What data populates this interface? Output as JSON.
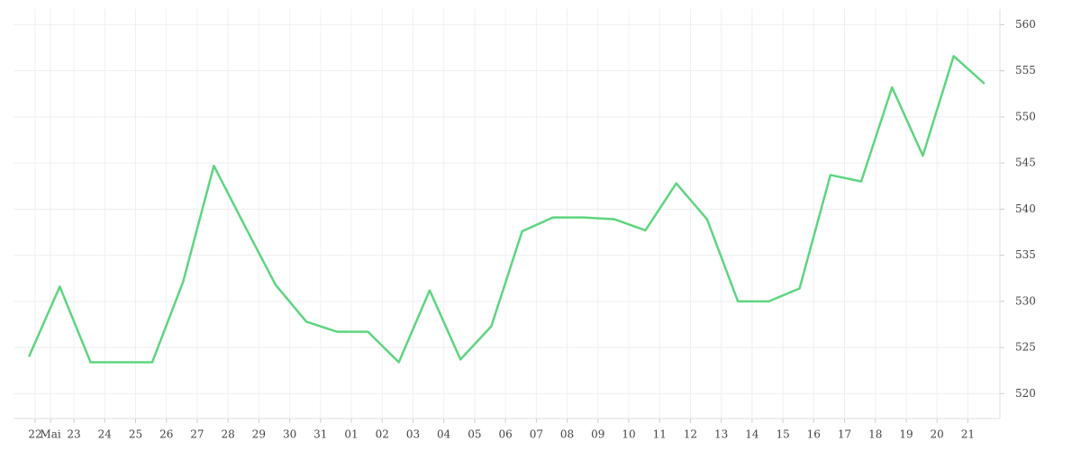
{
  "chart_data": {
    "type": "line",
    "x": [
      0,
      1,
      2,
      3,
      4,
      5,
      6,
      7,
      8,
      9,
      10,
      11,
      12,
      13,
      14,
      15,
      16,
      17,
      18,
      19,
      20,
      21,
      22,
      23,
      24,
      25,
      26,
      27,
      28,
      29,
      30,
      31
    ],
    "series": [
      {
        "name": null,
        "color": "#5dd57f",
        "values": [
          524.0,
          531.6,
          523.4,
          523.4,
          523.4,
          532.1,
          544.7,
          538.2,
          531.8,
          527.8,
          526.7,
          526.7,
          523.4,
          531.2,
          523.7,
          527.3,
          537.6,
          539.1,
          539.1,
          538.9,
          537.7,
          542.8,
          538.9,
          530.0,
          530.0,
          531.4,
          543.7,
          543.0,
          553.2,
          545.8,
          556.6,
          553.6
        ]
      }
    ],
    "xlim": [
      -0.5,
      31.5
    ],
    "xticks": [
      {
        "value": 0.2,
        "label": "22"
      },
      {
        "value": 0.7,
        "label": "Mai"
      },
      {
        "value": 1.46,
        "label": "23"
      },
      {
        "value": 2.46,
        "label": "24"
      },
      {
        "value": 3.46,
        "label": "25"
      },
      {
        "value": 4.46,
        "label": "26"
      },
      {
        "value": 5.46,
        "label": "27"
      },
      {
        "value": 6.46,
        "label": "28"
      },
      {
        "value": 7.46,
        "label": "29"
      },
      {
        "value": 8.46,
        "label": "30"
      },
      {
        "value": 9.46,
        "label": "31"
      },
      {
        "value": 10.46,
        "label": "01"
      },
      {
        "value": 11.46,
        "label": "02"
      },
      {
        "value": 12.46,
        "label": "03"
      },
      {
        "value": 13.46,
        "label": "04"
      },
      {
        "value": 14.46,
        "label": "05"
      },
      {
        "value": 15.46,
        "label": "06"
      },
      {
        "value": 16.46,
        "label": "07"
      },
      {
        "value": 17.46,
        "label": "08"
      },
      {
        "value": 18.46,
        "label": "09"
      },
      {
        "value": 19.46,
        "label": "10"
      },
      {
        "value": 20.46,
        "label": "11"
      },
      {
        "value": 21.46,
        "label": "12"
      },
      {
        "value": 22.46,
        "label": "13"
      },
      {
        "value": 23.46,
        "label": "14"
      },
      {
        "value": 24.46,
        "label": "15"
      },
      {
        "value": 25.46,
        "label": "16"
      },
      {
        "value": 26.46,
        "label": "17"
      },
      {
        "value": 27.46,
        "label": "18"
      },
      {
        "value": 28.46,
        "label": "19"
      },
      {
        "value": 29.46,
        "label": "20"
      },
      {
        "value": 30.46,
        "label": "21"
      }
    ],
    "ylim": [
      517.3,
      561.7
    ],
    "yticks": [
      520,
      525,
      530,
      535,
      540,
      545,
      550,
      555,
      560
    ],
    "grid": true
  }
}
